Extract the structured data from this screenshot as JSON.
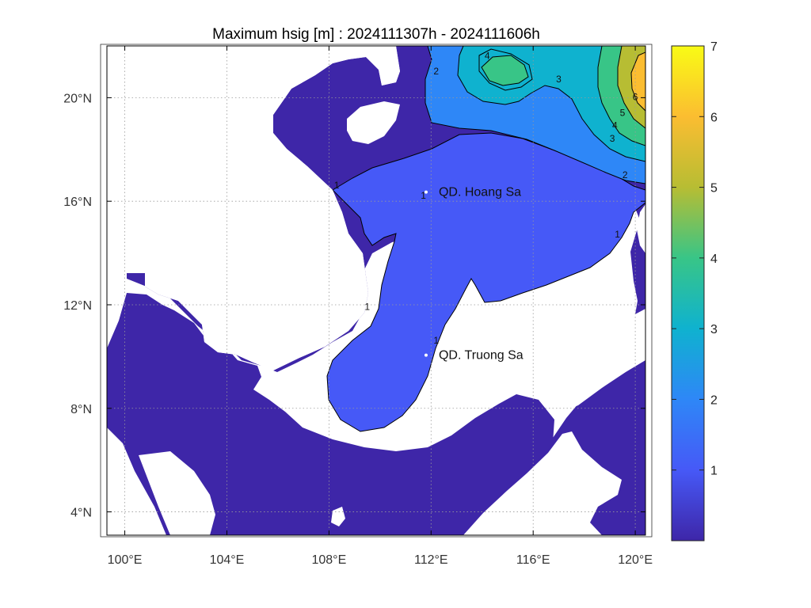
{
  "title": "Maximum hsig [m] : 2024111307h - 2024111606h",
  "map": {
    "lon_range": [
      99.3,
      120.4
    ],
    "lat_range": [
      3.1,
      22.0
    ],
    "x_ticks": [
      {
        "value": 100,
        "label": "100°E"
      },
      {
        "value": 104,
        "label": "104°E"
      },
      {
        "value": 108,
        "label": "108°E"
      },
      {
        "value": 112,
        "label": "112°E"
      },
      {
        "value": 116,
        "label": "116°E"
      },
      {
        "value": 120,
        "label": "120°E"
      }
    ],
    "y_ticks": [
      {
        "value": 4,
        "label": "4°N"
      },
      {
        "value": 8,
        "label": "8°N"
      },
      {
        "value": 12,
        "label": "12°N"
      },
      {
        "value": 16,
        "label": "16°N"
      },
      {
        "value": 20,
        "label": "20°N"
      }
    ],
    "grid": true,
    "land_color": "#ffffff"
  },
  "places": [
    {
      "name": "QD. Hoang Sa",
      "lon": 112.3,
      "lat": 16.2
    },
    {
      "name": "QD. Truong Sa",
      "lon": 112.3,
      "lat": 9.9
    }
  ],
  "contour_labels": [
    {
      "text": "1",
      "lon": 108.3,
      "lat": 16.5
    },
    {
      "text": "1",
      "lon": 109.5,
      "lat": 11.8
    },
    {
      "text": "1",
      "lon": 112.2,
      "lat": 10.5
    },
    {
      "text": "1",
      "lon": 119.3,
      "lat": 14.6
    },
    {
      "text": "1",
      "lon": 111.7,
      "lat": 16.1
    },
    {
      "text": "2",
      "lon": 112.2,
      "lat": 20.9
    },
    {
      "text": "2",
      "lon": 119.6,
      "lat": 16.9
    },
    {
      "text": "3",
      "lon": 117.0,
      "lat": 20.6
    },
    {
      "text": "3",
      "lon": 119.1,
      "lat": 18.3
    },
    {
      "text": "4",
      "lon": 114.2,
      "lat": 21.5
    },
    {
      "text": "4",
      "lon": 119.2,
      "lat": 18.8
    },
    {
      "text": "5",
      "lon": 119.5,
      "lat": 19.3
    },
    {
      "text": "6",
      "lon": 120.0,
      "lat": 19.9
    }
  ],
  "colorbar": {
    "min": 0,
    "max": 7,
    "ticks": [
      {
        "value": 1,
        "label": "1"
      },
      {
        "value": 2,
        "label": "2"
      },
      {
        "value": 3,
        "label": "3"
      },
      {
        "value": 4,
        "label": "4"
      },
      {
        "value": 5,
        "label": "5"
      },
      {
        "value": 6,
        "label": "6"
      },
      {
        "value": 7,
        "label": "7"
      }
    ],
    "colormap": "parula",
    "colors": [
      "#3e26a8",
      "#4659f7",
      "#2e87f7",
      "#0fb2cf",
      "#38c587",
      "#b7bd33",
      "#fbbd31",
      "#f9fb15"
    ]
  }
}
